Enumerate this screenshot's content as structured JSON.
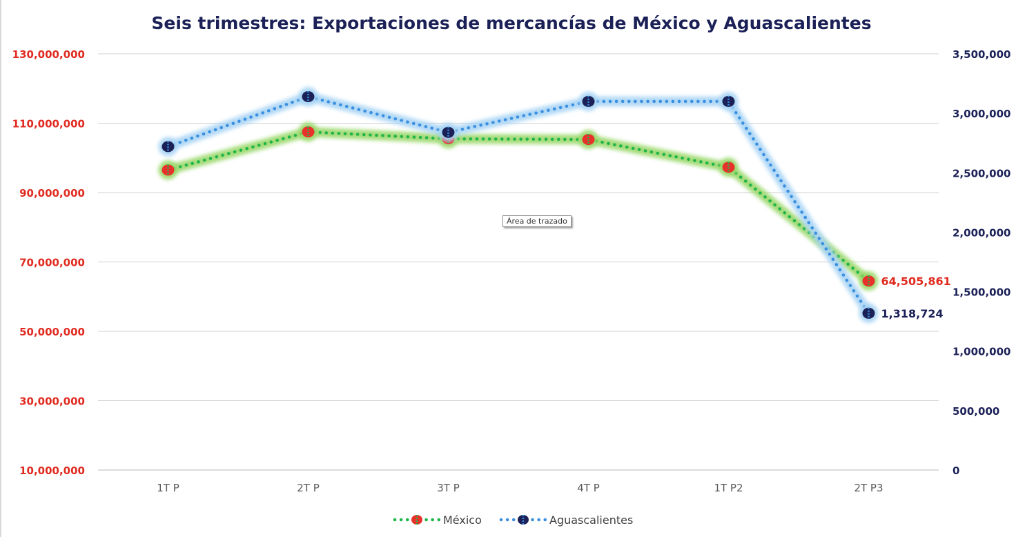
{
  "chart_data": {
    "type": "line",
    "title": "Seis trimestres: Exportaciones de mercancías de México y Aguascalientes",
    "categories": [
      "1T P",
      "2T P",
      "3T P",
      "4T P",
      "1T P2",
      "2T P3"
    ],
    "series": [
      {
        "name": "México",
        "axis": "left",
        "values": [
          96500000,
          107500000,
          105500000,
          105300000,
          97300000,
          64505861
        ],
        "line_color": "#1fb54a",
        "marker_color": "#e8312a",
        "glow_color": "#9ad86a",
        "data_labels": {
          "5": "64,505,861"
        }
      },
      {
        "name": "Aguascalientes",
        "axis": "right",
        "values": [
          2720000,
          3140000,
          2840000,
          3100000,
          3100000,
          1318724
        ],
        "line_color": "#3a8fe0",
        "marker_color": "#1b2157",
        "glow_color": "#a8d4f5",
        "data_labels": {
          "5": "1,318,724"
        }
      }
    ],
    "y_left": {
      "min": 10000000,
      "max": 130000000,
      "ticks": [
        "10,000,000",
        "30,000,000",
        "50,000,000",
        "70,000,000",
        "90,000,000",
        "110,000,000",
        "130,000,000"
      ],
      "tick_values": [
        10000000,
        30000000,
        50000000,
        70000000,
        90000000,
        110000000,
        130000000
      ],
      "color": "#e02b20"
    },
    "y_right": {
      "min": 0,
      "max": 3500000,
      "ticks": [
        "0",
        "500,000",
        "1,000,000",
        "1,500,000",
        "2,000,000",
        "2,500,000",
        "3,000,000",
        "3,500,000"
      ],
      "tick_values": [
        0,
        500000,
        1000000,
        1500000,
        2000000,
        2500000,
        3000000,
        3500000
      ],
      "color": "#1b2157"
    },
    "grid": true,
    "legend": "bottom",
    "title_color": "#1b2157",
    "grid_color": "#d0d0d0",
    "category_color": "#595959"
  },
  "tooltip": "Área de trazado"
}
